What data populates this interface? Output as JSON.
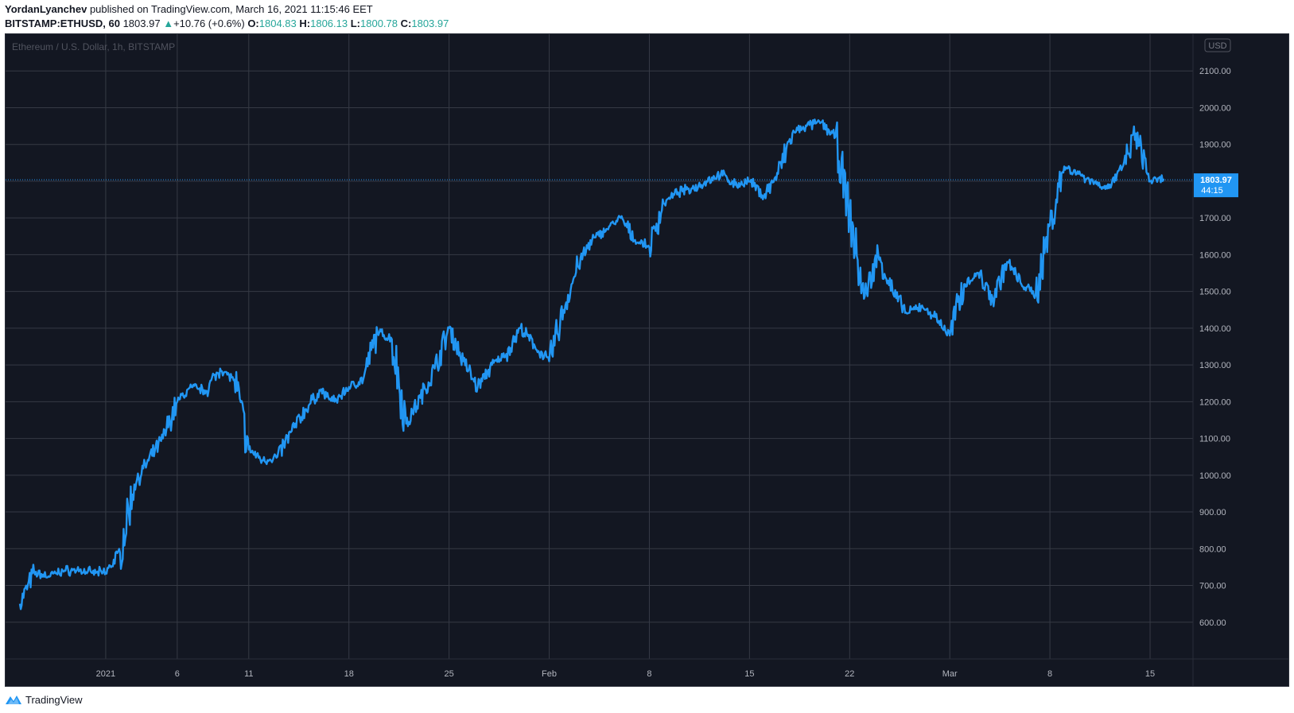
{
  "header": {
    "author": "YordanLyanchev",
    "published": "published on TradingView.com, March 16, 2021 11:15:46 EET",
    "symbol": "BITSTAMP:ETHUSD, 60",
    "last": "1803.97",
    "change_arrow": "▲",
    "change": "+10.76 (+0.6%)",
    "o_label": "O:",
    "o": "1804.83",
    "h_label": "H:",
    "h": "1806.13",
    "l_label": "L:",
    "l": "1800.78",
    "c_label": "C:",
    "c": "1803.97"
  },
  "chart": {
    "watermark": "Ethereum / U.S. Dollar, 1h, BITSTAMP",
    "currency": "USD",
    "price_tag": "1803.97",
    "countdown": "44:15"
  },
  "footer": {
    "brand": "TradingView"
  },
  "colors": {
    "background": "#131722",
    "grid": "#363a45",
    "line": "#2196f3",
    "tag_bg": "#2196f3",
    "text": "#b2b5be",
    "up": "#26a69a"
  },
  "chart_data": {
    "type": "line",
    "title": "Ethereum / U.S. Dollar, 1h, BITSTAMP",
    "xlabel": "",
    "ylabel": "USD",
    "ylim": [
      500,
      2200
    ],
    "xlim": [
      "2020-12-25",
      "2021-03-18"
    ],
    "y_ticks": [
      600,
      700,
      800,
      900,
      1000,
      1100,
      1200,
      1300,
      1400,
      1500,
      1600,
      1700,
      1800,
      1900,
      2000,
      2100
    ],
    "y_tick_labels": [
      "600.00",
      "700.00",
      "800.00",
      "900.00",
      "1000.00",
      "1100.00",
      "1200.00",
      "1300.00",
      "1400.00",
      "1500.00",
      "1600.00",
      "1700.00",
      "1800.00",
      "1900.00",
      "2000.00",
      "2100.00"
    ],
    "x_ticks": [
      {
        "label": "2021",
        "date": "2021-01-01"
      },
      {
        "label": "6",
        "date": "2021-01-06"
      },
      {
        "label": "11",
        "date": "2021-01-11"
      },
      {
        "label": "18",
        "date": "2021-01-18"
      },
      {
        "label": "25",
        "date": "2021-01-25"
      },
      {
        "label": "Feb",
        "date": "2021-02-01"
      },
      {
        "label": "8",
        "date": "2021-02-08"
      },
      {
        "label": "15",
        "date": "2021-02-15"
      },
      {
        "label": "22",
        "date": "2021-02-22"
      },
      {
        "label": "Mar",
        "date": "2021-03-01"
      },
      {
        "label": "8",
        "date": "2021-03-08"
      },
      {
        "label": "15",
        "date": "2021-03-15"
      }
    ],
    "grid": true,
    "last_value": 1803.97,
    "series": [
      {
        "x": [
          "2020-12-26",
          "2020-12-27",
          "2020-12-28",
          "2020-12-29",
          "2020-12-30",
          "2020-12-31",
          "2021-01-01",
          "2021-01-02",
          "2021-01-03",
          "2021-01-04",
          "2021-01-05",
          "2021-01-06",
          "2021-01-07",
          "2021-01-08",
          "2021-01-09",
          "2021-01-10",
          "2021-01-11",
          "2021-01-12",
          "2021-01-13",
          "2021-01-14",
          "2021-01-15",
          "2021-01-16",
          "2021-01-17",
          "2021-01-18",
          "2021-01-19",
          "2021-01-20",
          "2021-01-21",
          "2021-01-22",
          "2021-01-23",
          "2021-01-24",
          "2021-01-25",
          "2021-01-26",
          "2021-01-27",
          "2021-01-28",
          "2021-01-29",
          "2021-01-30",
          "2021-01-31",
          "2021-02-01",
          "2021-02-02",
          "2021-02-03",
          "2021-02-04",
          "2021-02-05",
          "2021-02-06",
          "2021-02-07",
          "2021-02-08",
          "2021-02-09",
          "2021-02-10",
          "2021-02-11",
          "2021-02-12",
          "2021-02-13",
          "2021-02-14",
          "2021-02-15",
          "2021-02-16",
          "2021-02-17",
          "2021-02-18",
          "2021-02-19",
          "2021-02-20",
          "2021-02-21",
          "2021-02-22",
          "2021-02-23",
          "2021-02-24",
          "2021-02-25",
          "2021-02-26",
          "2021-02-27",
          "2021-02-28",
          "2021-03-01",
          "2021-03-02",
          "2021-03-03",
          "2021-03-04",
          "2021-03-05",
          "2021-03-06",
          "2021-03-07",
          "2021-03-08",
          "2021-03-09",
          "2021-03-10",
          "2021-03-11",
          "2021-03-12",
          "2021-03-13",
          "2021-03-14",
          "2021-03-15",
          "2021-03-16"
        ],
        "y": [
          650,
          735,
          725,
          740,
          742,
          735,
          735,
          790,
          975,
          1040,
          1100,
          1200,
          1240,
          1230,
          1290,
          1260,
          1070,
          1040,
          1050,
          1120,
          1180,
          1230,
          1200,
          1240,
          1260,
          1390,
          1370,
          1140,
          1210,
          1290,
          1400,
          1310,
          1240,
          1300,
          1330,
          1400,
          1350,
          1310,
          1450,
          1570,
          1640,
          1670,
          1700,
          1640,
          1620,
          1740,
          1770,
          1780,
          1800,
          1820,
          1790,
          1800,
          1760,
          1820,
          1930,
          1950,
          1960,
          1920,
          1710,
          1480,
          1600,
          1500,
          1440,
          1460,
          1430,
          1380,
          1520,
          1550,
          1480,
          1580,
          1520,
          1490,
          1680,
          1840,
          1820,
          1800,
          1780,
          1830,
          1930,
          1800,
          1803.97
        ]
      }
    ]
  }
}
